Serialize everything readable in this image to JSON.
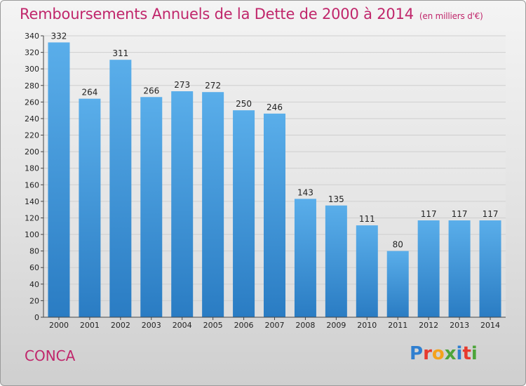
{
  "title": "Remboursements Annuels de la Dette de 2000 à 2014",
  "unit_label": "(en milliers d'€)",
  "commune": "CONCA",
  "logo": {
    "letters": [
      {
        "ch": "P",
        "color": "#2f7fd0"
      },
      {
        "ch": "r",
        "color": "#e63a2e"
      },
      {
        "ch": "o",
        "color": "#f4a21c"
      },
      {
        "ch": "x",
        "color": "#4da53a"
      },
      {
        "ch": "i",
        "color": "#2f7fd0"
      },
      {
        "ch": "t",
        "color": "#e63a2e"
      },
      {
        "ch": "i",
        "color": "#4da53a"
      }
    ]
  },
  "colors": {
    "accent": "#c0266b",
    "bar_top": "#5aaeea",
    "bar_bottom": "#2a7cc3",
    "grid": "#cfcfcf",
    "axis": "#444444"
  },
  "chart_data": {
    "type": "bar",
    "title": "Remboursements Annuels de la Dette de 2000 à 2014",
    "xlabel": "",
    "ylabel": "",
    "ylim": [
      0,
      340
    ],
    "ytick_step": 20,
    "grid": true,
    "categories": [
      "2000",
      "2001",
      "2002",
      "2003",
      "2004",
      "2005",
      "2006",
      "2007",
      "2008",
      "2009",
      "2010",
      "2011",
      "2012",
      "2013",
      "2014"
    ],
    "values": [
      332,
      264,
      311,
      266,
      273,
      272,
      250,
      246,
      143,
      135,
      111,
      80,
      117,
      117,
      117
    ]
  }
}
